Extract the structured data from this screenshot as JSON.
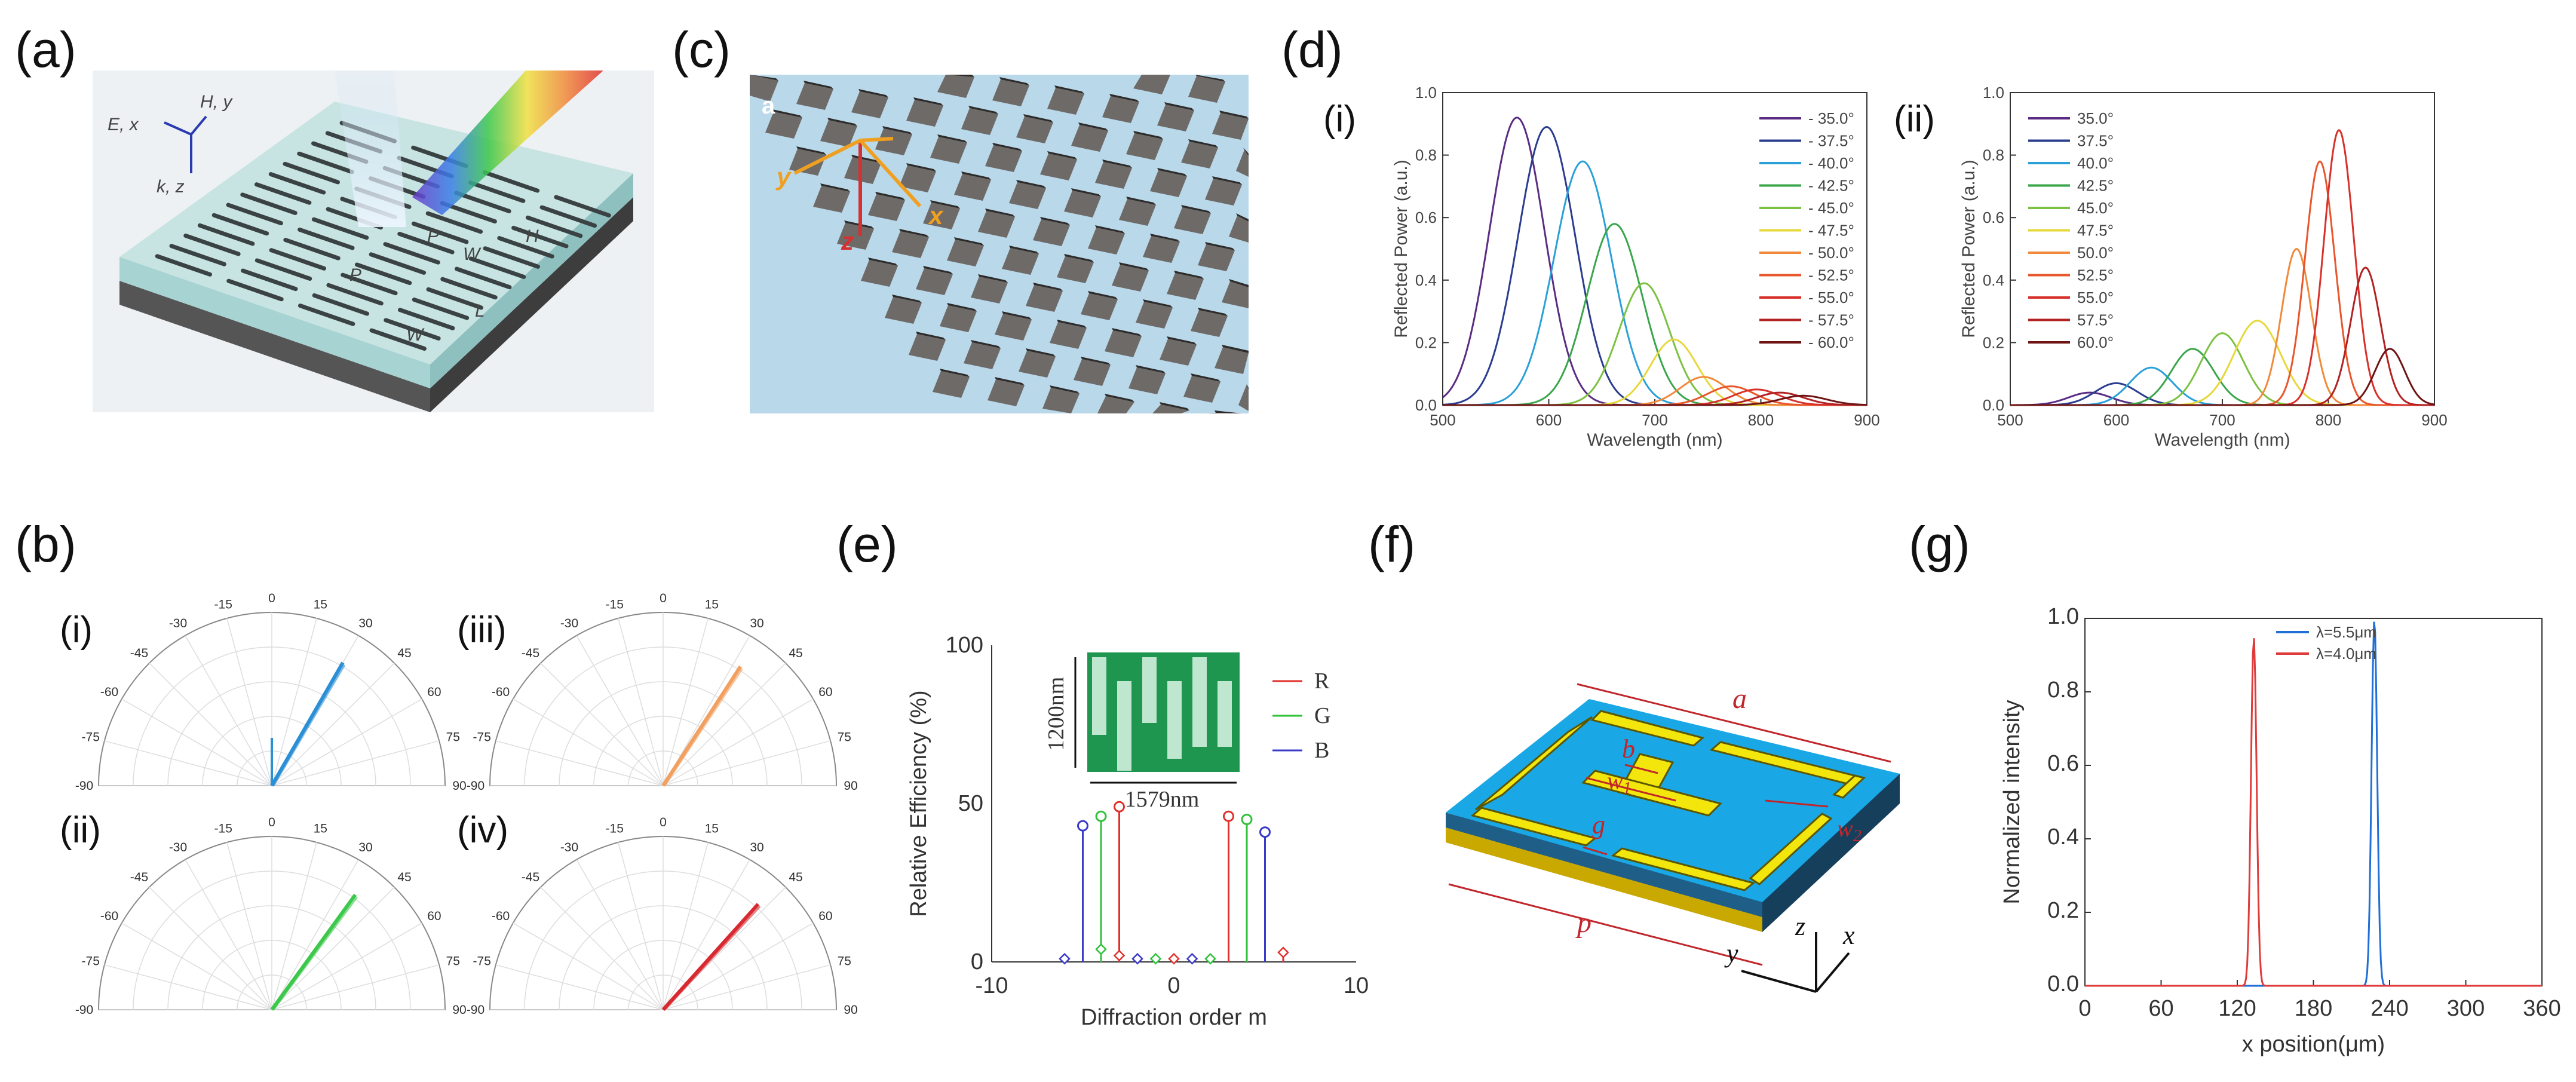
{
  "panel_labels": {
    "a": "(a)",
    "b": "(b)",
    "c": "(c)",
    "d": "(d)",
    "e": "(e)",
    "f": "(f)",
    "g": "(g)"
  },
  "sublabels": {
    "i": "(i)",
    "ii": "(ii)",
    "iii": "(iii)",
    "iv": "(iv)"
  },
  "panel_a": {
    "axis_top": "H, y",
    "axis_left": "E, x",
    "axis_bottom": "k, z",
    "label_P": "P",
    "label_Px": "P",
    "label_W1": "W",
    "label_H": "H",
    "label_L": "L",
    "label_W2": "W"
  },
  "panel_c": {
    "corner": "a",
    "x": "x",
    "y": "y",
    "z": "z"
  },
  "panel_f": {
    "a": "a",
    "b": "b",
    "w1": "w",
    "w1_sub": "1",
    "w2": "w",
    "w2_sub": "2",
    "g": "g",
    "p": "p",
    "x": "x",
    "y": "y",
    "z": "z"
  },
  "polar": {
    "angle_labels": [
      "-90",
      "-75",
      "-60",
      "-45",
      "-30",
      "-15",
      "0",
      "15",
      "30",
      "45",
      "60",
      "75",
      "90"
    ]
  },
  "colors": {
    "R": "#e0302c",
    "G": "#2fc23a",
    "B": "#3a3ac8",
    "blue_beam": "#2b8fd6",
    "orange_beam": "#f2a060",
    "green_beam": "#3cc84a",
    "red_beam": "#d82830"
  },
  "chart_data": [
    {
      "id": "d-i",
      "type": "line",
      "xlabel": "Wavelength (nm)",
      "ylabel": "Reflected Power (a.u.)",
      "xlim": [
        500,
        900
      ],
      "ylim": [
        0,
        1.0
      ],
      "xticks": [
        "500",
        "600",
        "700",
        "800",
        "900"
      ],
      "yticks": [
        "0.0",
        "0.2",
        "0.4",
        "0.6",
        "0.8",
        "1.0"
      ],
      "series": [
        {
          "name": "- 35.0°",
          "color": "#5b2c83",
          "peak_x": 570,
          "peak_y": 0.92,
          "width": 26
        },
        {
          "name": "- 37.5°",
          "color": "#2a3d8f",
          "peak_x": 598,
          "peak_y": 0.89,
          "width": 27
        },
        {
          "name": "- 40.0°",
          "color": "#2aa0d8",
          "peak_x": 632,
          "peak_y": 0.78,
          "width": 27
        },
        {
          "name": "- 42.5°",
          "color": "#3aa64b",
          "peak_x": 662,
          "peak_y": 0.58,
          "width": 26
        },
        {
          "name": "- 45.0°",
          "color": "#7cc142",
          "peak_x": 690,
          "peak_y": 0.39,
          "width": 24
        },
        {
          "name": "- 47.5°",
          "color": "#e6d83a",
          "peak_x": 718,
          "peak_y": 0.21,
          "width": 22
        },
        {
          "name": "- 50.0°",
          "color": "#f08a3a",
          "peak_x": 746,
          "peak_y": 0.09,
          "width": 22
        },
        {
          "name": "- 52.5°",
          "color": "#e8562a",
          "peak_x": 772,
          "peak_y": 0.06,
          "width": 22
        },
        {
          "name": "- 55.0°",
          "color": "#d8302a",
          "peak_x": 796,
          "peak_y": 0.05,
          "width": 22
        },
        {
          "name": "- 57.5°",
          "color": "#b22222",
          "peak_x": 818,
          "peak_y": 0.04,
          "width": 22
        },
        {
          "name": "- 60.0°",
          "color": "#6e1414",
          "peak_x": 840,
          "peak_y": 0.03,
          "width": 22
        }
      ]
    },
    {
      "id": "d-ii",
      "type": "line",
      "xlabel": "Wavelength (nm)",
      "ylabel": "Reflected Power (a.u.)",
      "xlim": [
        500,
        900
      ],
      "ylim": [
        0,
        1.0
      ],
      "xticks": [
        "500",
        "600",
        "700",
        "800",
        "900"
      ],
      "yticks": [
        "0.0",
        "0.2",
        "0.4",
        "0.6",
        "0.8",
        "1.0"
      ],
      "series": [
        {
          "name": "35.0°",
          "color": "#5b2c83",
          "peak_x": 575,
          "peak_y": 0.04,
          "width": 20
        },
        {
          "name": "37.5°",
          "color": "#2a3d8f",
          "peak_x": 600,
          "peak_y": 0.07,
          "width": 20
        },
        {
          "name": "40.0°",
          "color": "#2aa0d8",
          "peak_x": 633,
          "peak_y": 0.12,
          "width": 20
        },
        {
          "name": "42.5°",
          "color": "#3aa64b",
          "peak_x": 672,
          "peak_y": 0.18,
          "width": 20
        },
        {
          "name": "45.0°",
          "color": "#7cc142",
          "peak_x": 700,
          "peak_y": 0.23,
          "width": 20
        },
        {
          "name": "47.5°",
          "color": "#e6d83a",
          "peak_x": 733,
          "peak_y": 0.27,
          "width": 22
        },
        {
          "name": "50.0°",
          "color": "#f08a3a",
          "peak_x": 770,
          "peak_y": 0.5,
          "width": 14
        },
        {
          "name": "52.5°",
          "color": "#e8562a",
          "peak_x": 792,
          "peak_y": 0.78,
          "width": 14
        },
        {
          "name": "55.0°",
          "color": "#d8302a",
          "peak_x": 810,
          "peak_y": 0.88,
          "width": 14
        },
        {
          "name": "57.5°",
          "color": "#b22222",
          "peak_x": 835,
          "peak_y": 0.44,
          "width": 14
        },
        {
          "name": "60.0°",
          "color": "#6e1414",
          "peak_x": 858,
          "peak_y": 0.18,
          "width": 14
        }
      ]
    },
    {
      "id": "e",
      "type": "scatter",
      "title": "",
      "xlabel": "Diffraction order m",
      "ylabel": "Relative Efficiency (%)",
      "xlim": [
        -10,
        10
      ],
      "ylim": [
        0,
        100
      ],
      "xticks": [
        "-10",
        "0",
        "10"
      ],
      "yticks": [
        "0",
        "50",
        "100"
      ],
      "inset": {
        "height_label": "1200nm",
        "width_label": "1579nm"
      },
      "legend": [
        "R",
        "G",
        "B"
      ],
      "series": [
        {
          "name": "R",
          "color": "#e0302c",
          "x": [
            -3,
            3
          ],
          "y": [
            49,
            46
          ]
        },
        {
          "name": "G",
          "color": "#2fc23a",
          "x": [
            -4,
            4
          ],
          "y": [
            46,
            45
          ]
        },
        {
          "name": "B",
          "color": "#3a3ac8",
          "x": [
            -5,
            5
          ],
          "y": [
            43,
            41
          ]
        }
      ],
      "small_markers": {
        "x": [
          -6,
          -4,
          -3,
          -2,
          -1,
          0,
          1,
          2,
          6
        ],
        "y": [
          1,
          4,
          2,
          1,
          1,
          1,
          1,
          1,
          3
        ]
      }
    },
    {
      "id": "g",
      "type": "line",
      "xlabel": "x position(μm)",
      "ylabel": "Normalized intensity",
      "xlim": [
        0,
        360
      ],
      "ylim": [
        0,
        1.0
      ],
      "xticks": [
        "0",
        "60",
        "120",
        "180",
        "240",
        "300",
        "360"
      ],
      "yticks": [
        "0.0",
        "0.2",
        "0.4",
        "0.6",
        "0.8",
        "1.0"
      ],
      "series": [
        {
          "name": "λ=5.5μm",
          "color": "#1f6fd6",
          "peak_x": 228,
          "peak_y": 1.0,
          "width": 2.2
        },
        {
          "name": "λ=4.0μm",
          "color": "#e03b3b",
          "peak_x": 133,
          "peak_y": 0.95,
          "width": 2.2
        }
      ]
    }
  ]
}
